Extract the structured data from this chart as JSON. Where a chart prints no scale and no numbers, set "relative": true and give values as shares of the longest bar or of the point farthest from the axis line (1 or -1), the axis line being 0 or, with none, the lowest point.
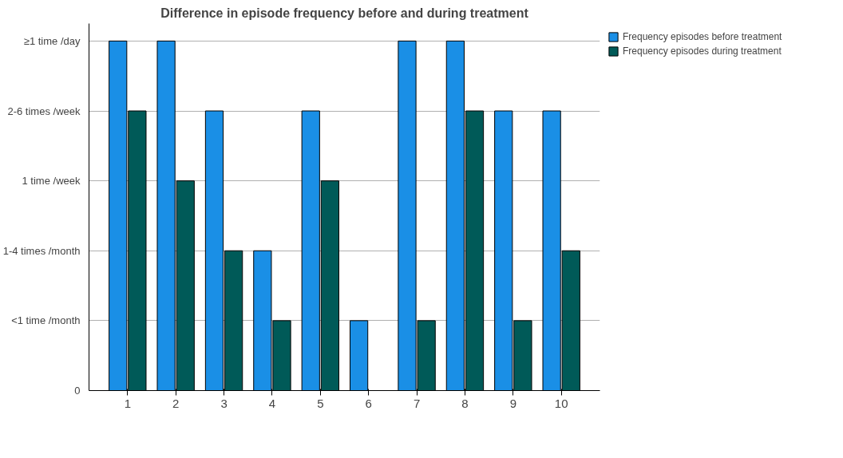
{
  "chart_data": {
    "type": "bar",
    "title": "Difference in episode frequency before and during treatment",
    "categories": [
      "1",
      "2",
      "3",
      "4",
      "5",
      "6",
      "7",
      "8",
      "9",
      "10"
    ],
    "relative": true,
    "series": [
      {
        "name": "Frequency episodes before treatment",
        "color": "#1a8fe6",
        "values": [
          1,
          1,
          0.8,
          0.4,
          0.8,
          0.2,
          1,
          1,
          0.8,
          0.8
        ]
      },
      {
        "name": "Frequency episodes during treatment",
        "color": "#005a58",
        "values": [
          0.8,
          0.6,
          0.4,
          0.2,
          0.6,
          0,
          0.2,
          0.8,
          0.2,
          0.4
        ]
      }
    ],
    "annotations": [
      "0",
      "<1 time /month",
      "1-4 times /month",
      "1 time /week",
      "2-6 times /week",
      "≥1 time /day"
    ],
    "grid": "y",
    "legend": "top right"
  }
}
